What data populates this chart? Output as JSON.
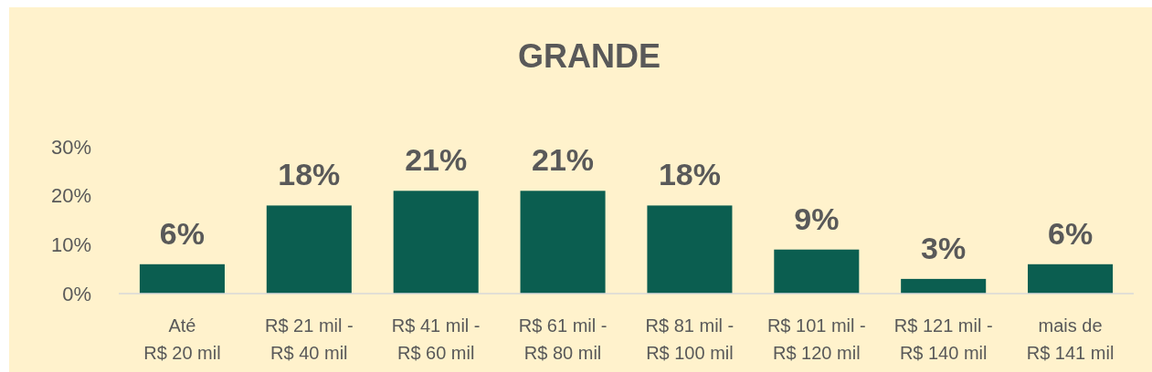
{
  "chart_data": {
    "type": "bar",
    "title": "GRANDE",
    "categories": [
      "Até R$ 20 mil",
      "R$ 21 mil - R$ 40 mil",
      "R$ 41 mil - R$ 60 mil",
      "R$ 61 mil - R$ 80 mil",
      "R$ 81 mil - R$ 100 mil",
      "R$ 101 mil - R$ 120 mil",
      "R$ 121 mil - R$ 140 mil",
      "mais de R$ 141 mil"
    ],
    "values": [
      6,
      18,
      21,
      21,
      18,
      9,
      3,
      6
    ],
    "value_labels": [
      "6%",
      "18%",
      "21%",
      "21%",
      "18%",
      "9%",
      "3%",
      "6%"
    ],
    "color": "#0b5e50",
    "ylim": [
      0,
      30
    ],
    "yticks": [
      {
        "value": 0,
        "label": "0%"
      },
      {
        "value": 10,
        "label": "10%"
      },
      {
        "value": 20,
        "label": "20%"
      },
      {
        "value": 30,
        "label": "30%"
      }
    ],
    "grid": false
  }
}
